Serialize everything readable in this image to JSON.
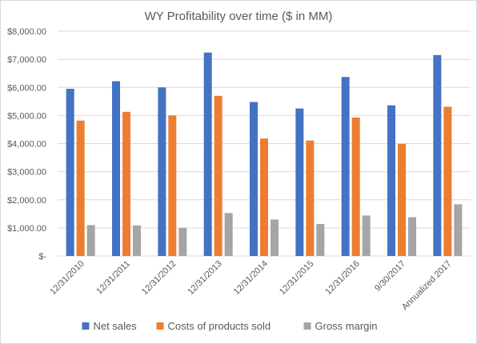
{
  "chart_data": {
    "type": "bar",
    "title": "WY Profitability over time ($ in MM)",
    "xlabel": "",
    "ylabel": "",
    "categories": [
      "12/31/2010",
      "12/31/2011",
      "12/31/2012",
      "12/31/2013",
      "12/31/2014",
      "12/31/2015",
      "12/31/2016",
      "9/30/2017",
      "Annualized 2017"
    ],
    "series": [
      {
        "name": "Net sales",
        "color": "#4472c4",
        "values": [
          5950,
          6220,
          6000,
          7240,
          5480,
          5250,
          6370,
          5360,
          7150
        ]
      },
      {
        "name": "Costs of products sold",
        "color": "#ed7d31",
        "values": [
          4820,
          5130,
          5000,
          5700,
          4180,
          4110,
          4930,
          3990,
          5310
        ]
      },
      {
        "name": "Gross margin",
        "color": "#a5a5a5",
        "values": [
          1100,
          1090,
          1000,
          1530,
          1300,
          1140,
          1440,
          1380,
          1840
        ]
      }
    ],
    "ylim": [
      0,
      8000
    ],
    "yticks": [
      0,
      1000,
      2000,
      3000,
      4000,
      5000,
      6000,
      7000,
      8000
    ],
    "ytick_labels": [
      "$-",
      "$1,000.00",
      "$2,000.00",
      "$3,000.00",
      "$4,000.00",
      "$5,000.00",
      "$6,000.00",
      "$7,000.00",
      "$8,000.00"
    ],
    "grid": true,
    "legend_position": "bottom"
  }
}
